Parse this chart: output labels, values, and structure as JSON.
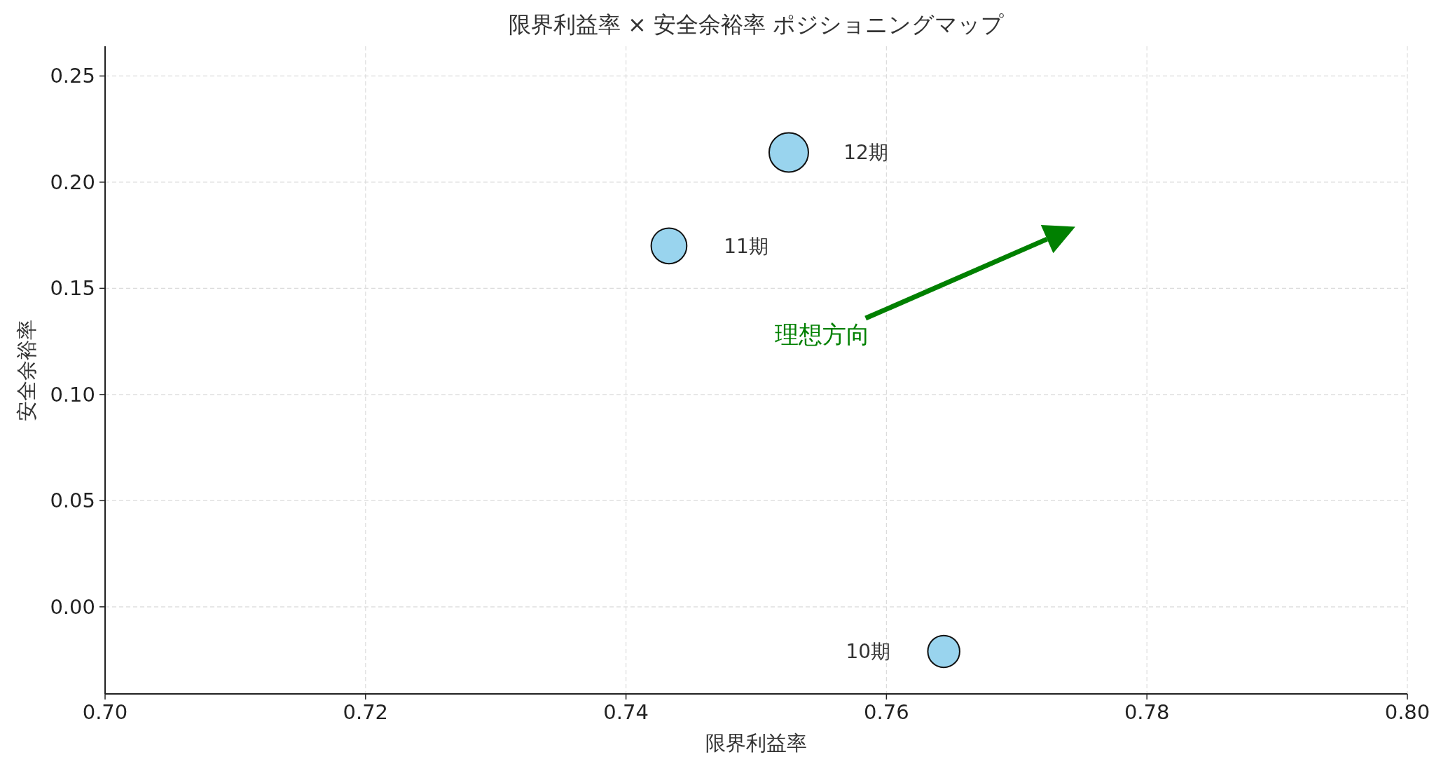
{
  "chart_data": {
    "type": "bubble",
    "title": "限界利益率 × 安全余裕率 ポジショニングマップ",
    "xlabel": "限界利益率",
    "ylabel": "安全余裕率",
    "x": [
      0.7644,
      0.7433,
      0.7525
    ],
    "values": [
      -0.021,
      0.17,
      0.214
    ],
    "sizes": [
      0.66,
      0.82,
      1
    ],
    "color": "#99d4ee",
    "marker": "circle",
    "xlim": [
      0.7,
      0.8
    ],
    "ylim": [
      -0.041,
      0.264
    ],
    "xticks": [
      {
        "value": 0.7,
        "label": "0.70"
      },
      {
        "value": 0.72,
        "label": "0.72"
      },
      {
        "value": 0.74,
        "label": "0.74"
      },
      {
        "value": 0.76,
        "label": "0.76"
      },
      {
        "value": 0.78,
        "label": "0.78"
      },
      {
        "value": 0.8,
        "label": "0.80"
      }
    ],
    "yticks": [
      {
        "value": 0,
        "label": "0.00"
      },
      {
        "value": 0.05,
        "label": "0.05"
      },
      {
        "value": 0.1,
        "label": "0.10"
      },
      {
        "value": 0.15,
        "label": "0.15"
      },
      {
        "value": 0.2,
        "label": "0.20"
      },
      {
        "value": 0.25,
        "label": "0.25"
      }
    ],
    "grid": true,
    "annotations": [
      {
        "text": "10期",
        "x": 0.7644,
        "y": -0.021
      },
      {
        "text": "11期",
        "x": 0.7433,
        "y": 0.17
      },
      {
        "text": "12期",
        "x": 0.7525,
        "y": 0.214
      },
      "理想方向"
    ]
  }
}
